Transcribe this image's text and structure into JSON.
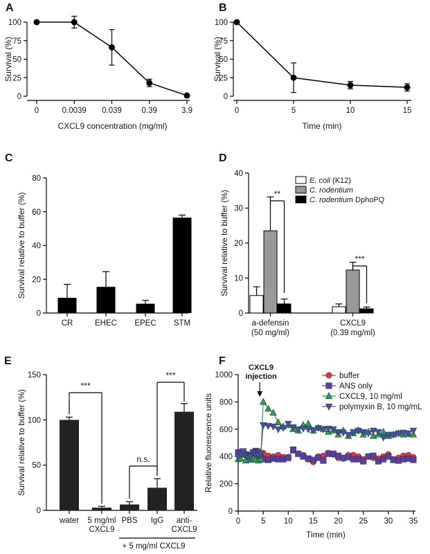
{
  "chart_data": [
    {
      "panel": "A",
      "type": "line",
      "categories": [
        "0",
        "0.0039",
        "0.039",
        "0.39",
        "3.9"
      ],
      "values": [
        100,
        100,
        66,
        18,
        1
      ],
      "errors": [
        0,
        8,
        24,
        5,
        0
      ],
      "xlabel": "CXCL9 concentration (mg/ml)",
      "ylabel": "Survival (%)",
      "ylim": [
        0,
        100
      ],
      "yticks": [
        0,
        25,
        50,
        75,
        100
      ]
    },
    {
      "panel": "B",
      "type": "line",
      "x": [
        0,
        5,
        10,
        15
      ],
      "values": [
        100,
        25,
        15,
        12
      ],
      "errors": [
        0,
        20,
        5,
        5
      ],
      "xlabel": "Time (min)",
      "ylabel": "Survival (%)",
      "xlim": [
        0,
        15
      ],
      "xticks": [
        0,
        5,
        10,
        15
      ],
      "ylim": [
        0,
        100
      ],
      "yticks": [
        0,
        25,
        50,
        75,
        100
      ]
    },
    {
      "panel": "C",
      "type": "bar",
      "categories": [
        "CR",
        "EHEC",
        "EPEC",
        "STM"
      ],
      "values": [
        9,
        15.5,
        5.5,
        56.5
      ],
      "errors": [
        8,
        9,
        2,
        1.5
      ],
      "ylabel": "Survival relative to buffer (%)",
      "ylim": [
        0,
        80
      ],
      "yticks": [
        0,
        20,
        40,
        60,
        80
      ]
    },
    {
      "panel": "D",
      "type": "bar",
      "groups": [
        {
          "label": "a-defensin",
          "sub": "(50 mg/ml)"
        },
        {
          "label": "CXCL9",
          "sub": "(0.39 mg/ml)"
        }
      ],
      "series": [
        {
          "name": "E. coli (K12)",
          "color": "#ffffff",
          "values": [
            5,
            1.8
          ],
          "errors": [
            2.5,
            0.8
          ]
        },
        {
          "name": "C. rodentium",
          "color": "#999999",
          "values": [
            23.5,
            12.3
          ],
          "errors": [
            9.7,
            2.2
          ]
        },
        {
          "name": "C. rodentium DphoPQ",
          "color": "#000000",
          "values": [
            2.6,
            1.2
          ],
          "errors": [
            1.4,
            0.5
          ]
        }
      ],
      "legend_parts": [
        {
          "italic": "E. coli",
          "plain": " (K12)"
        },
        {
          "italic": "C. rodentium",
          "plain": ""
        },
        {
          "italic": "C. rodentium",
          "plain": " DphoPQ"
        }
      ],
      "significance": [
        "**",
        "***"
      ],
      "ylabel": "Survival relative to buffer (%)",
      "ylim": [
        0,
        40
      ],
      "yticks": [
        0,
        10,
        20,
        30,
        40
      ],
      "legend_position": "top-right"
    },
    {
      "panel": "E",
      "type": "bar",
      "categories": [
        "water",
        "5 mg/ml CXCL9",
        "PBS",
        "IgG",
        "anti-CXCL9"
      ],
      "category_lines": [
        [
          "water"
        ],
        [
          "5 mg/ml",
          "CXCL9"
        ],
        [
          "PBS"
        ],
        [
          "IgG"
        ],
        [
          "anti-",
          "CXCL9"
        ]
      ],
      "values": [
        100,
        3,
        6.5,
        25,
        109
      ],
      "errors": [
        3,
        1.5,
        3,
        10,
        9
      ],
      "significance": [
        "***",
        "n.s.",
        "***"
      ],
      "group_label": "+ 5 mg/ml CXCL9",
      "ylabel": "Survival relative to buffer (%)",
      "ylim": [
        0,
        150
      ],
      "yticks": [
        0,
        50,
        100,
        150
      ]
    },
    {
      "panel": "F",
      "type": "line",
      "x": [
        0,
        0.5,
        1,
        1.5,
        2,
        2.5,
        3,
        3.5,
        4,
        4.5,
        5,
        6,
        7,
        8,
        9,
        10,
        11,
        12,
        13,
        14,
        15,
        16,
        17,
        18,
        19,
        20,
        21,
        22,
        23,
        24,
        25,
        26,
        27,
        28,
        29,
        30,
        31,
        32,
        33,
        34,
        35
      ],
      "series": [
        {
          "name": "buffer",
          "color": "#e8323c",
          "marker": "circle",
          "values": [
            420,
            410,
            420,
            410,
            415,
            405,
            405,
            395,
            410,
            420,
            425,
            405,
            400,
            410,
            395,
            395,
            445,
            420,
            410,
            380,
            360,
            400,
            405,
            425,
            415,
            390,
            385,
            410,
            410,
            400,
            380,
            400,
            390,
            385,
            400,
            415,
            380,
            390,
            405,
            410,
            395
          ]
        },
        {
          "name": "ANS only",
          "color": "#5a3fa2",
          "marker": "square",
          "values": [
            430,
            430,
            425,
            415,
            400,
            395,
            430,
            440,
            435,
            390,
            380,
            375,
            385,
            380,
            380,
            390,
            450,
            420,
            400,
            385,
            375,
            390,
            370,
            420,
            420,
            405,
            390,
            395,
            380,
            380,
            365,
            400,
            405,
            365,
            380,
            400,
            375,
            370,
            380,
            385,
            375
          ]
        },
        {
          "name": "CXCL9, 10 mg/ml",
          "color": "#2e9e5b",
          "marker": "triangle-up",
          "values": [
            380,
            385,
            420,
            370,
            410,
            375,
            385,
            380,
            370,
            380,
            800,
            750,
            720,
            650,
            620,
            630,
            600,
            590,
            630,
            640,
            590,
            610,
            600,
            580,
            590,
            560,
            590,
            550,
            570,
            590,
            560,
            580,
            550,
            560,
            580,
            550,
            560,
            570,
            560,
            565,
            560
          ]
        },
        {
          "name": "polymyxin B, 10 mg/mL",
          "color": "#3f56a6",
          "marker": "triangle-down",
          "values": [
            400,
            420,
            440,
            405,
            390,
            400,
            430,
            420,
            410,
            415,
            630,
            625,
            620,
            600,
            610,
            640,
            615,
            600,
            605,
            600,
            595,
            610,
            600,
            605,
            600,
            580,
            575,
            560,
            580,
            590,
            580,
            570,
            590,
            580,
            540,
            560,
            560,
            570,
            575,
            570,
            590
          ]
        }
      ],
      "annotation": [
        "CXCL9",
        "injection"
      ],
      "annotation_x": 4.3,
      "xlabel": "Time (min)",
      "ylabel": "Relative fluorescence units",
      "xlim": [
        0,
        35
      ],
      "xticks": [
        0,
        5,
        10,
        15,
        20,
        25,
        30,
        35
      ],
      "ylim": [
        0,
        1000
      ],
      "yticks": [
        0,
        200,
        400,
        600,
        800,
        1000
      ]
    }
  ]
}
